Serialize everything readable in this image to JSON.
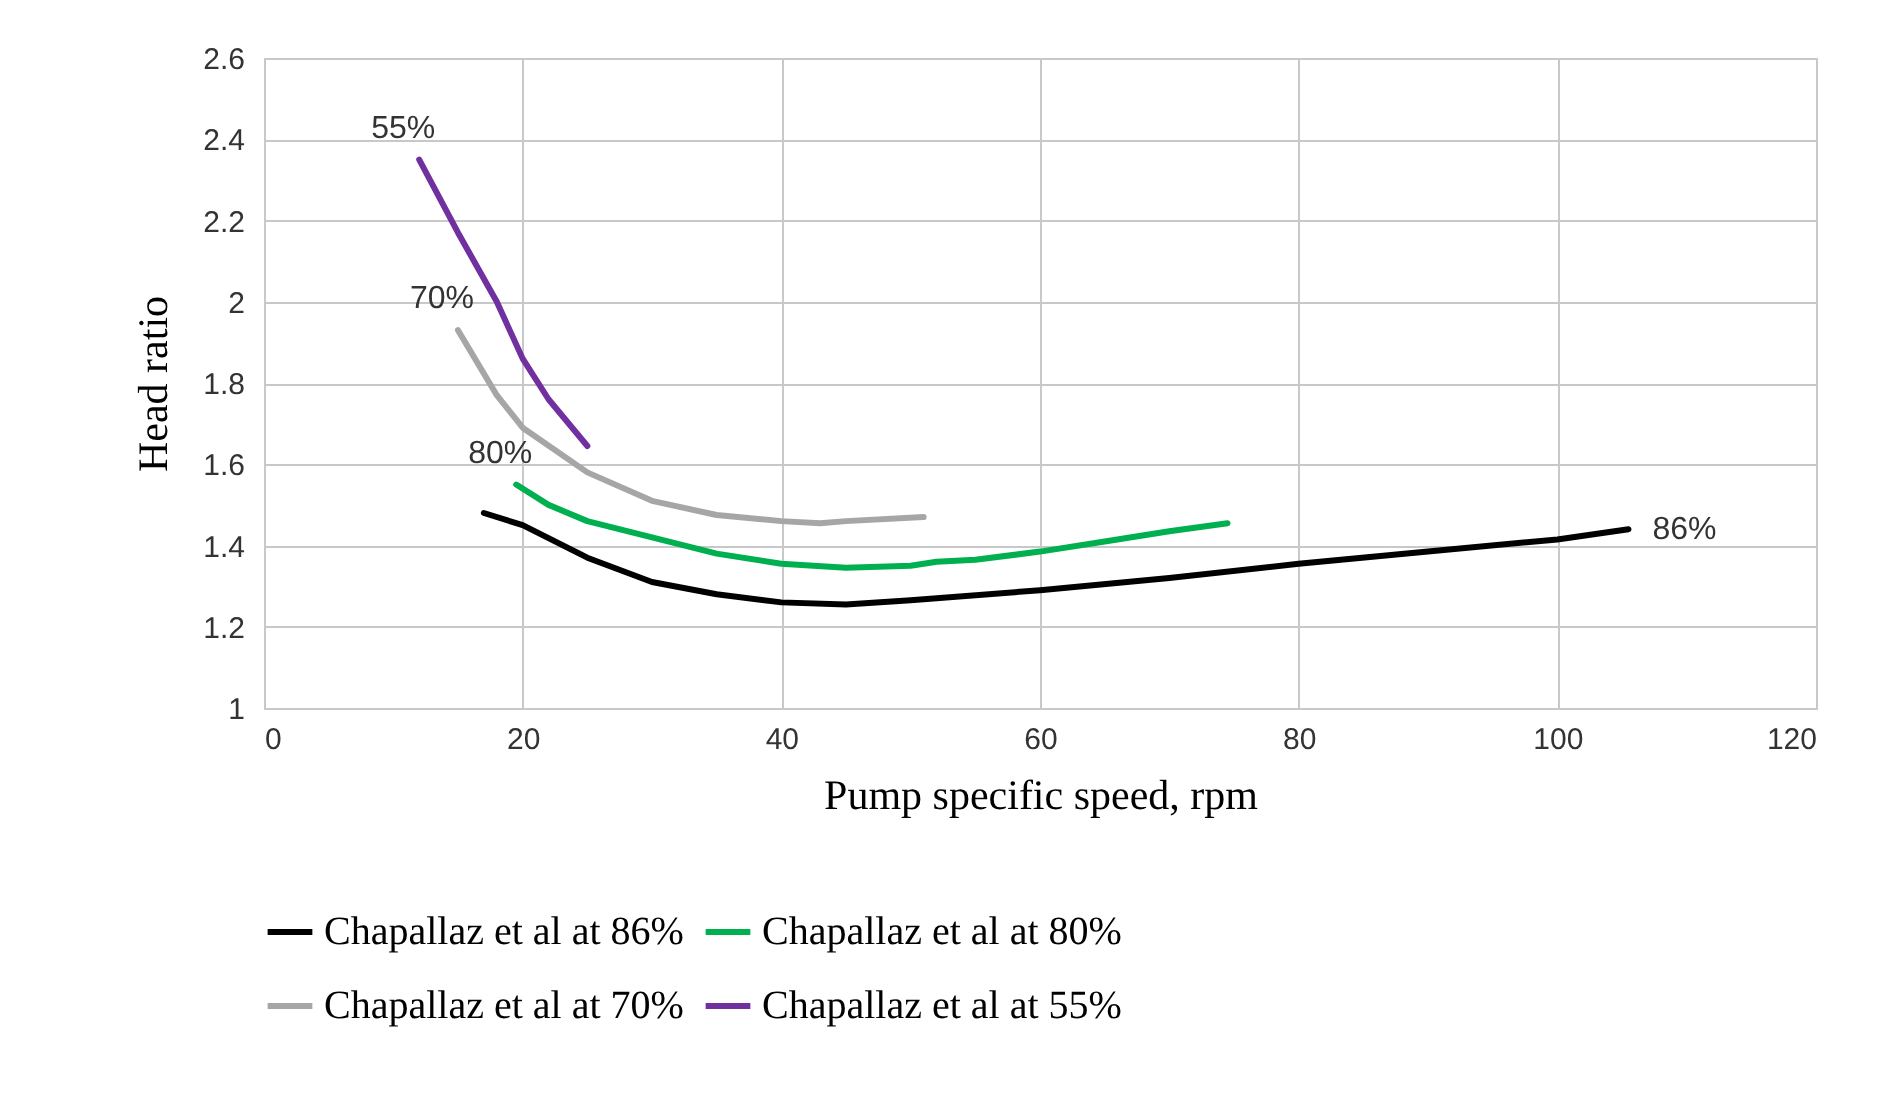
{
  "chart_data": {
    "type": "line",
    "xlabel": "Pump specific  speed, rpm",
    "ylabel": "Head ratio",
    "xlim": [
      0,
      120
    ],
    "xticks": [
      0,
      20,
      40,
      60,
      80,
      100,
      120
    ],
    "ylim": [
      1,
      2.6
    ],
    "yticks": [
      1,
      1.2,
      1.4,
      1.6,
      1.8,
      2,
      2.2,
      2.4,
      2.6
    ],
    "grid": true,
    "legend": "bottom",
    "line_style": "solid",
    "marker": "none",
    "series": [
      {
        "name": "Chapallaz et al at 86%",
        "color": "#000000",
        "x": [
          17,
          20,
          25,
          30,
          35,
          40,
          45,
          50,
          60,
          70,
          80,
          90,
          100,
          105.5
        ],
        "values": [
          1.48,
          1.45,
          1.37,
          1.31,
          1.28,
          1.26,
          1.255,
          1.265,
          1.29,
          1.32,
          1.355,
          1.385,
          1.415,
          1.44
        ]
      },
      {
        "name": "Chapallaz et al at 80%",
        "color": "#00b050",
        "x": [
          19.5,
          22,
          25,
          30,
          35,
          40,
          45,
          50,
          52,
          55,
          60,
          65,
          70,
          74.5
        ],
        "values": [
          1.55,
          1.5,
          1.46,
          1.42,
          1.38,
          1.355,
          1.345,
          1.35,
          1.36,
          1.365,
          1.385,
          1.41,
          1.435,
          1.455
        ]
      },
      {
        "name": "Chapallaz et al at 70%",
        "color": "#a6a6a6",
        "x": [
          15,
          18,
          20,
          25,
          30,
          35,
          40,
          43,
          45,
          51
        ],
        "values": [
          1.93,
          1.77,
          1.69,
          1.58,
          1.51,
          1.475,
          1.46,
          1.455,
          1.46,
          1.47
        ]
      },
      {
        "name": "Chapallaz et al at 55%",
        "color": "#7030a0",
        "x": [
          12,
          15,
          18,
          20,
          22,
          25
        ],
        "values": [
          2.35,
          2.17,
          2.0,
          1.86,
          1.76,
          1.645
        ]
      }
    ],
    "annotations": [
      {
        "text": "55%",
        "x": 12,
        "y": 2.35
      },
      {
        "text": "70%",
        "x": 15,
        "y": 1.93
      },
      {
        "text": "80%",
        "x": 19.5,
        "y": 1.55
      },
      {
        "text": "86%",
        "x": 105.5,
        "y": 1.44
      }
    ]
  }
}
